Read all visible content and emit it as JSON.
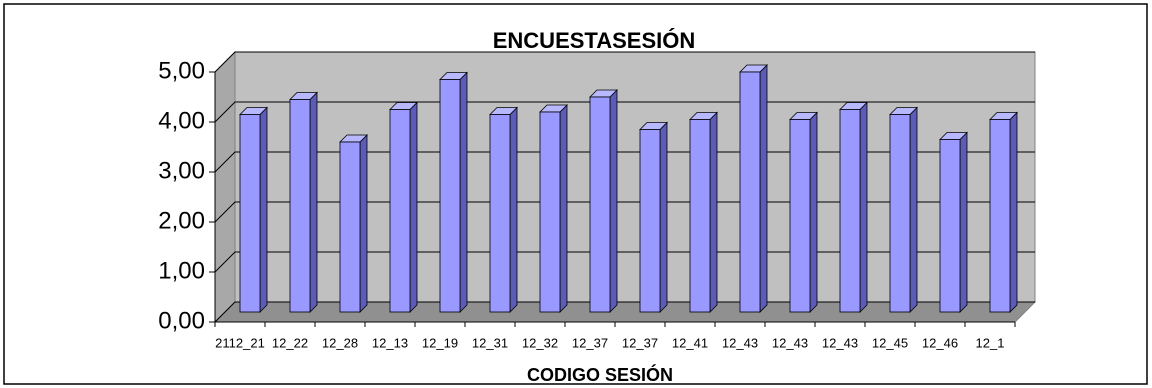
{
  "chart_data": {
    "type": "bar3d",
    "title": "ENCUESTASESIÓN",
    "x_label": "CODIGO SESIÓN",
    "categories": [
      "2112_21",
      "12_22",
      "12_28",
      "12_13",
      "12_19",
      "12_31",
      "12_32",
      "12_37",
      "12_37",
      "12_41",
      "12_43",
      "12_43",
      "12_43",
      "12_45",
      "12_46",
      "12_1"
    ],
    "values": [
      3.95,
      4.25,
      3.4,
      4.05,
      4.65,
      3.95,
      4.0,
      4.3,
      3.65,
      3.85,
      4.8,
      3.85,
      4.05,
      3.95,
      3.45,
      3.85
    ],
    "color": "#9999ff",
    "ylim": [
      0,
      5
    ],
    "yticks": [
      {
        "value": 0,
        "label": "0,00"
      },
      {
        "value": 1,
        "label": "1,00"
      },
      {
        "value": 2,
        "label": "2,00"
      },
      {
        "value": 3,
        "label": "3,00"
      },
      {
        "value": 4,
        "label": "4,00"
      },
      {
        "value": 5,
        "label": "5,00"
      }
    ],
    "grid": true
  }
}
